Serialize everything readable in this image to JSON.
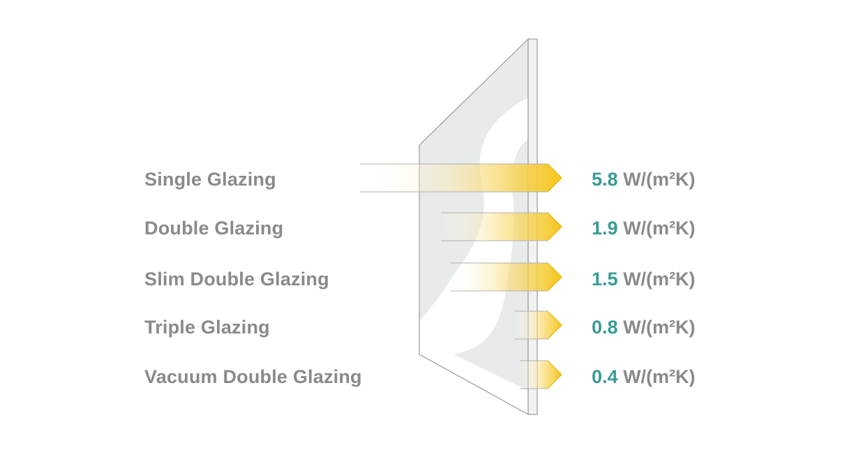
{
  "colors": {
    "label": "#8a8a8a",
    "value_number": "#3a9a96",
    "arrow_yellow": "#f5c518",
    "glass_fill": "#e9eaea",
    "glass_outline": "#9a9a9a"
  },
  "rows": [
    {
      "label": "Single Glazing",
      "value": "5.8",
      "unit": "W/(m²K)"
    },
    {
      "label": "Double Glazing",
      "value": "1.9",
      "unit": "W/(m²K)"
    },
    {
      "label": "Slim Double Glazing",
      "value": "1.5",
      "unit": "W/(m²K)"
    },
    {
      "label": "Triple Glazing",
      "value": "0.8",
      "unit": "W/(m²K)"
    },
    {
      "label": "Vacuum Double Glazing",
      "value": "0.4",
      "unit": "W/(m²K)"
    }
  ]
}
